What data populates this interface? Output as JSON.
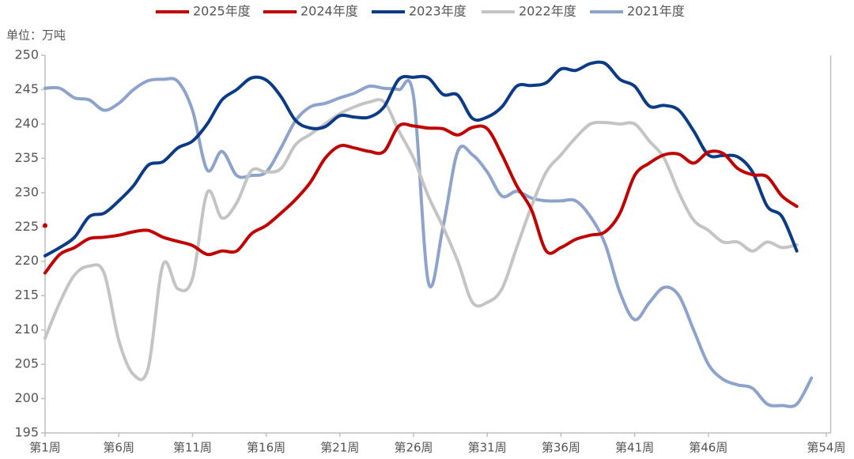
{
  "chart_data": {
    "type": "line",
    "unit_label": "单位：万吨",
    "x": [
      1,
      2,
      3,
      4,
      5,
      6,
      7,
      8,
      9,
      10,
      11,
      12,
      13,
      14,
      15,
      16,
      17,
      18,
      19,
      20,
      21,
      22,
      23,
      24,
      25,
      26,
      27,
      28,
      29,
      30,
      31,
      32,
      33,
      34,
      35,
      36,
      37,
      38,
      39,
      40,
      41,
      42,
      43,
      44,
      45,
      46,
      47,
      48,
      49,
      50,
      51,
      52,
      53
    ],
    "xlim": [
      1,
      54.3
    ],
    "xticks": [
      {
        "value": 1,
        "label": "第1周"
      },
      {
        "value": 6,
        "label": "第6周"
      },
      {
        "value": 11,
        "label": "第11周"
      },
      {
        "value": 16,
        "label": "第16周"
      },
      {
        "value": 21,
        "label": "第21周"
      },
      {
        "value": 26,
        "label": "第26周"
      },
      {
        "value": 31,
        "label": "第31周"
      },
      {
        "value": 36,
        "label": "第36周"
      },
      {
        "value": 41,
        "label": "第41周"
      },
      {
        "value": 46,
        "label": "第46周"
      },
      {
        "value": 54,
        "label": "第54周"
      }
    ],
    "ylim": [
      195,
      250
    ],
    "yticks": [
      195,
      200,
      205,
      210,
      215,
      220,
      225,
      230,
      235,
      240,
      245,
      250
    ],
    "legend": "top",
    "series": [
      {
        "name": "2025年度",
        "color": "#c00000",
        "values": [
          225.2,
          null,
          null,
          null,
          null,
          null,
          null,
          null,
          null,
          null,
          null,
          null,
          null,
          null,
          null,
          null,
          null,
          null,
          null,
          null,
          null,
          null,
          null,
          null,
          null,
          null,
          null,
          null,
          null,
          null,
          null,
          null,
          null,
          null,
          null,
          null,
          null,
          null,
          null,
          null,
          null,
          null,
          null,
          null,
          null,
          null,
          null,
          null,
          null,
          null,
          null,
          null,
          null
        ]
      },
      {
        "name": "2024年度",
        "color": "#c00000",
        "values": [
          218.3,
          221,
          222,
          223.3,
          223.5,
          223.8,
          224.3,
          224.5,
          223.5,
          222.9,
          222.3,
          221,
          221.5,
          221.5,
          224,
          225.2,
          227,
          229,
          231.5,
          235,
          236.8,
          236.5,
          236,
          236,
          239.7,
          239.7,
          239.4,
          239.3,
          238.4,
          239.5,
          239.3,
          235.5,
          231,
          227.5,
          221.5,
          222,
          223.2,
          223.8,
          224.3,
          227,
          232.5,
          234.3,
          235.5,
          235.6,
          234.3,
          235.9,
          235.7,
          233.5,
          232.6,
          232.3,
          229.5,
          228,
          null
        ]
      },
      {
        "name": "2023年度",
        "color": "#0b3a86",
        "values": [
          220.8,
          222,
          223.5,
          226.5,
          227,
          228.8,
          231,
          234,
          234.5,
          236.5,
          237.5,
          240,
          243.5,
          245,
          246.7,
          246.4,
          244,
          240.5,
          239.4,
          239.6,
          241.2,
          241,
          241,
          242.5,
          246.5,
          246.8,
          246.7,
          244.3,
          244.2,
          240.8,
          241,
          242.5,
          245.5,
          245.6,
          246,
          248,
          247.8,
          248.8,
          248.8,
          246.5,
          245.5,
          242.6,
          242.7,
          242,
          239,
          235.5,
          235.4,
          235.2,
          233,
          228,
          226.5,
          221.5,
          null
        ]
      },
      {
        "name": "2022年度",
        "color": "#c4c4c4",
        "values": [
          208.8,
          214,
          218,
          219.3,
          218.3,
          208.5,
          203.5,
          204.5,
          219.5,
          216,
          217.5,
          230,
          226.3,
          228.5,
          233.2,
          233,
          233.5,
          237,
          238.5,
          240,
          241.5,
          242.5,
          243.2,
          243.2,
          239,
          235,
          229.5,
          225,
          220,
          214,
          214,
          216,
          222,
          228,
          233,
          235.5,
          238,
          240,
          240.2,
          240,
          240,
          237.5,
          235,
          230,
          226,
          224.5,
          222.8,
          222.8,
          221.5,
          222.8,
          222,
          222.4,
          null
        ]
      },
      {
        "name": "2021年度",
        "color": "#8ea3cc",
        "values": [
          245.2,
          245.2,
          243.8,
          243.5,
          242,
          243,
          245,
          246.3,
          246.5,
          246.2,
          242,
          233.3,
          236,
          232.5,
          232.5,
          233,
          236.5,
          240.5,
          242.5,
          243,
          243.8,
          244.5,
          245.5,
          245.2,
          245,
          244,
          217,
          225,
          236,
          235.5,
          233,
          229.5,
          230.2,
          229.2,
          228.8,
          228.8,
          228.8,
          226.5,
          222.5,
          215.5,
          211.5,
          214,
          216.2,
          215,
          210,
          205,
          202.8,
          202,
          201.5,
          199.2,
          199,
          199.2,
          203
        ]
      }
    ]
  }
}
